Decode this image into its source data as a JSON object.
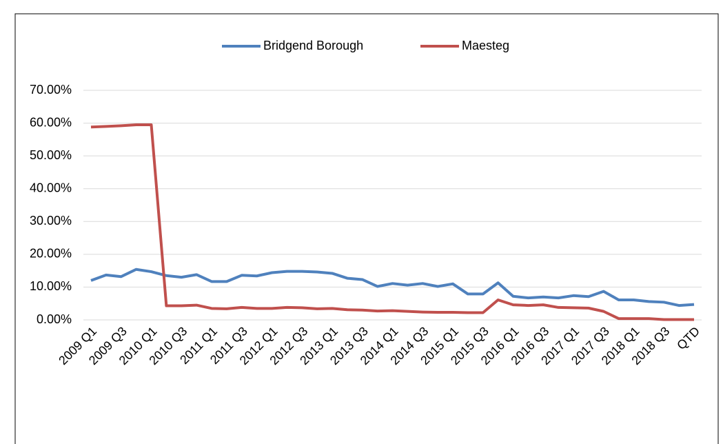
{
  "chart_data": {
    "type": "line",
    "categories": [
      "2009 Q1",
      null,
      "2009 Q3",
      null,
      "2010 Q1",
      null,
      "2010 Q3",
      null,
      "2011 Q1",
      null,
      "2011 Q3",
      null,
      "2012 Q1",
      null,
      "2012 Q3",
      null,
      "2013 Q1",
      null,
      "2013 Q3",
      null,
      "2014 Q1",
      null,
      "2014 Q3",
      null,
      "2015 Q1",
      null,
      "2015 Q3",
      null,
      "2016 Q1",
      null,
      "2016 Q3",
      null,
      "2017 Q1",
      null,
      "2017 Q3",
      null,
      "2018 Q1",
      null,
      "2018 Q3",
      null,
      "QTD"
    ],
    "series": [
      {
        "name": "Bridgend Borough",
        "color": "#4f81bd",
        "values": [
          12.0,
          13.7,
          13.2,
          15.4,
          14.7,
          13.5,
          13.0,
          13.8,
          11.7,
          11.7,
          13.6,
          13.4,
          14.4,
          14.8,
          14.8,
          14.6,
          14.2,
          12.7,
          12.3,
          10.2,
          11.1,
          10.6,
          11.1,
          10.2,
          11.0,
          7.9,
          7.9,
          11.3,
          7.2,
          6.7,
          7.0,
          6.7,
          7.4,
          7.1,
          8.7,
          6.1,
          6.1,
          5.6,
          5.4,
          4.4,
          4.7
        ]
      },
      {
        "name": "Maesteg",
        "color": "#c0504d",
        "values": [
          58.8,
          59.0,
          59.2,
          59.5,
          59.5,
          4.3,
          4.3,
          4.5,
          3.5,
          3.4,
          3.8,
          3.5,
          3.5,
          3.8,
          3.7,
          3.4,
          3.5,
          3.1,
          3.0,
          2.7,
          2.8,
          2.6,
          2.4,
          2.3,
          2.3,
          2.2,
          2.2,
          6.1,
          4.6,
          4.4,
          4.6,
          3.8,
          3.7,
          3.6,
          2.6,
          0.4,
          0.4,
          0.4,
          0.1,
          0.1,
          0.1
        ]
      }
    ],
    "ylim": [
      0,
      70
    ],
    "yticks": [
      {
        "value": 0,
        "label": "0.00%"
      },
      {
        "value": 10,
        "label": "10.00%"
      },
      {
        "value": 20,
        "label": "20.00%"
      },
      {
        "value": 30,
        "label": "30.00%"
      },
      {
        "value": 40,
        "label": "40.00%"
      },
      {
        "value": 50,
        "label": "50.00%"
      },
      {
        "value": 60,
        "label": "60.00%"
      },
      {
        "value": 70,
        "label": "70.00%"
      }
    ],
    "grid": true,
    "legend": "top"
  }
}
